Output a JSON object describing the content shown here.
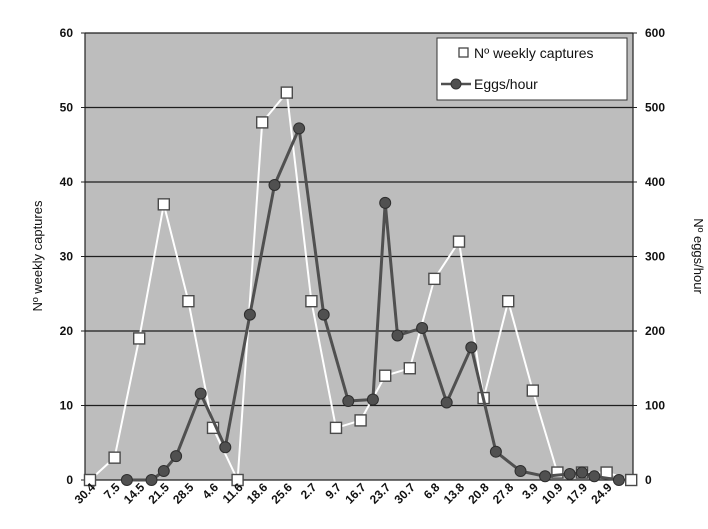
{
  "chart_data": {
    "type": "line",
    "title": "",
    "xlabel": "",
    "ylabel": "Nº weekly captures",
    "y2label": "Nº eggs/hour",
    "ylim": [
      0,
      60
    ],
    "y2lim": [
      0,
      600
    ],
    "yticks": [
      "0",
      "10",
      "20",
      "30",
      "40",
      "50",
      "60"
    ],
    "y2ticks": [
      "0",
      "100",
      "200",
      "300",
      "400",
      "500",
      "600"
    ],
    "grid": true,
    "legend_position": "top-right",
    "x_labels": [
      "30.4",
      "7.5",
      "14.5",
      "21.5",
      "28.5",
      "4.6",
      "11.6",
      "18.6",
      "25.6",
      "2.7",
      "9.7",
      "16.7",
      "23.7",
      "30.7",
      "6.8",
      "13.8",
      "20.8",
      "27.8",
      "3.9",
      "10.9",
      "17.9",
      "24.9"
    ],
    "series": [
      {
        "name": "Nº weekly captures",
        "axis": "left",
        "marker": "square",
        "color": "#ffffff",
        "points": [
          [
            0,
            0
          ],
          [
            1,
            3
          ],
          [
            2,
            19
          ],
          [
            3,
            37
          ],
          [
            4,
            24
          ],
          [
            5,
            7
          ],
          [
            6,
            0
          ],
          [
            7,
            48
          ],
          [
            8,
            52
          ],
          [
            9,
            24
          ],
          [
            10,
            7
          ],
          [
            11,
            8
          ],
          [
            12,
            14
          ],
          [
            13,
            15
          ],
          [
            14,
            27
          ],
          [
            15,
            32
          ],
          [
            16,
            11
          ],
          [
            17,
            24
          ],
          [
            18,
            12
          ],
          [
            19,
            1
          ],
          [
            20,
            1
          ],
          [
            21,
            1
          ],
          [
            22,
            0
          ]
        ]
      },
      {
        "name": "Eggs/hour",
        "axis": "right",
        "marker": "circle",
        "color": "#505050",
        "points": [
          [
            1.5,
            0
          ],
          [
            2.5,
            0
          ],
          [
            3,
            12
          ],
          [
            3.5,
            32
          ],
          [
            4.5,
            116
          ],
          [
            5.5,
            44
          ],
          [
            6.5,
            222
          ],
          [
            7.5,
            396
          ],
          [
            8.5,
            472
          ],
          [
            9.5,
            222
          ],
          [
            10.5,
            106
          ],
          [
            11.5,
            108
          ],
          [
            12,
            372
          ],
          [
            12.5,
            194
          ],
          [
            13.5,
            204
          ],
          [
            14.5,
            104
          ],
          [
            15.5,
            178
          ],
          [
            16.5,
            38
          ],
          [
            17.5,
            12
          ],
          [
            18.5,
            5
          ],
          [
            19.5,
            8
          ],
          [
            20,
            10
          ],
          [
            20.5,
            5
          ],
          [
            21.5,
            0
          ]
        ]
      }
    ]
  }
}
